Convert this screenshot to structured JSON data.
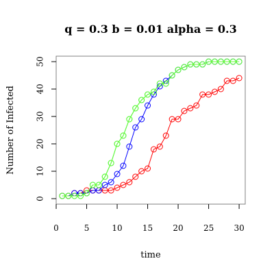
{
  "chart_data": {
    "type": "line",
    "title": "q = 0.3  b = 0.01  alpha = 0.3",
    "xlabel": "time",
    "ylabel": "Number of Infected",
    "xlim": [
      0,
      31
    ],
    "ylim": [
      -2,
      52
    ],
    "xticks": [
      0,
      5,
      10,
      15,
      20,
      25,
      30
    ],
    "yticks": [
      0,
      10,
      20,
      30,
      40,
      50
    ],
    "grid": false,
    "legend": "none",
    "x": [
      1,
      2,
      3,
      4,
      5,
      6,
      7,
      8,
      9,
      10,
      11,
      12,
      13,
      14,
      15,
      16,
      17,
      18,
      19,
      20,
      21,
      22,
      23,
      24,
      25,
      26,
      27,
      28,
      29,
      30
    ],
    "series": [
      {
        "color": "#ff0000",
        "values": [
          1,
          1,
          2,
          2,
          3,
          3,
          3,
          3,
          3,
          4,
          5,
          6,
          8,
          10,
          11,
          18,
          19,
          23,
          29,
          29,
          32,
          33,
          34,
          38,
          38,
          39,
          40,
          43,
          43,
          44
        ]
      },
      {
        "color": "#0000ff",
        "values": [
          1,
          1,
          2,
          2,
          2,
          3,
          3,
          5,
          6,
          9,
          12,
          19,
          26,
          29,
          34,
          38,
          41,
          43,
          45,
          47,
          48,
          49,
          49,
          49,
          50,
          50,
          50,
          50,
          50,
          50
        ]
      },
      {
        "color": "#00cc44",
        "values": [
          1,
          1,
          1,
          1,
          2,
          5,
          5,
          8,
          13,
          20,
          23,
          29,
          33,
          36,
          38,
          39,
          42,
          42,
          45,
          47,
          48,
          49,
          49,
          49,
          50,
          50,
          50,
          50,
          50,
          50
        ]
      },
      {
        "color": "#66ff33",
        "values": [
          1,
          1,
          1,
          1,
          2,
          5,
          5,
          8,
          13,
          20,
          23,
          29,
          33,
          36,
          38,
          39,
          42,
          42,
          45,
          47,
          48,
          49,
          49,
          49,
          50,
          50,
          50,
          50,
          50,
          50
        ]
      }
    ]
  }
}
